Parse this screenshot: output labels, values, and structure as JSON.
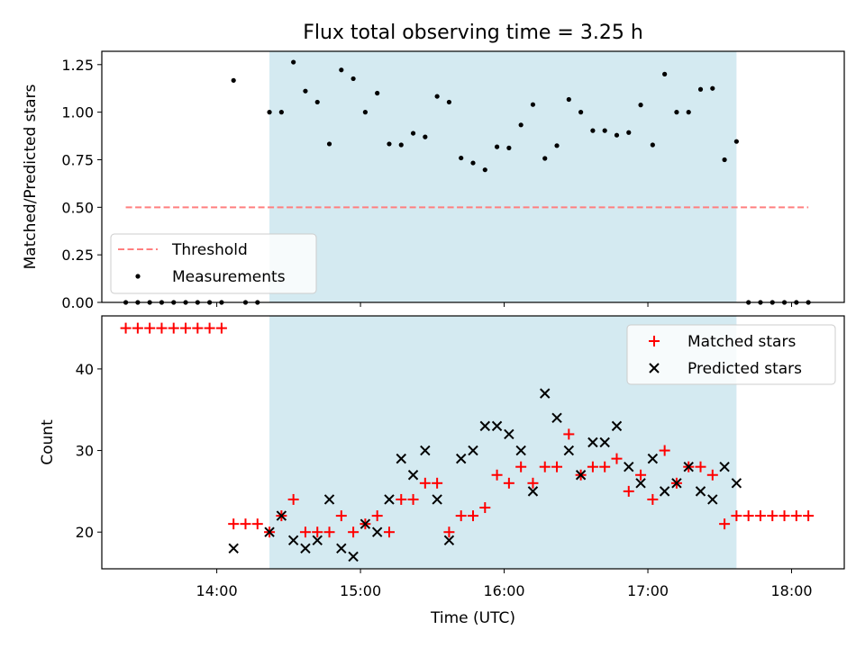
{
  "title": "Flux total observing time = 3.25 h",
  "chart_data": [
    {
      "type": "scatter",
      "ylabel": "Matched/Predicted stars",
      "xlim": [
        "13:12",
        "18:22"
      ],
      "ylim": [
        0,
        1.32
      ],
      "yticks": [
        "0.00",
        "0.25",
        "0.50",
        "0.75",
        "1.00",
        "1.25"
      ],
      "shaded_interval": [
        "14:22",
        "17:37"
      ],
      "threshold": {
        "name": "Threshold",
        "value": 0.5,
        "x_range": [
          "13:22",
          "18:07"
        ],
        "color": "#ff7f7f"
      },
      "series": [
        {
          "name": "Measurements",
          "color": "#000000",
          "x": [
            "13:22",
            "13:27",
            "13:32",
            "13:37",
            "13:42",
            "13:47",
            "13:52",
            "13:57",
            "14:02",
            "14:07",
            "14:12",
            "14:17",
            "14:22",
            "14:27",
            "14:32",
            "14:37",
            "14:42",
            "14:47",
            "14:52",
            "14:57",
            "15:02",
            "15:07",
            "15:12",
            "15:17",
            "15:22",
            "15:27",
            "15:32",
            "15:37",
            "15:42",
            "15:47",
            "15:52",
            "15:57",
            "16:02",
            "16:07",
            "16:12",
            "16:17",
            "16:22",
            "16:27",
            "16:32",
            "16:37",
            "16:42",
            "16:47",
            "16:52",
            "16:57",
            "17:02",
            "17:07",
            "17:12",
            "17:17",
            "17:22",
            "17:27",
            "17:32",
            "17:37",
            "17:42",
            "17:47",
            "17:52",
            "17:57",
            "18:02",
            "18:07"
          ],
          "y": [
            0,
            0,
            0,
            0,
            0,
            0,
            0,
            0,
            0,
            1.167,
            0,
            0,
            1.0,
            1.0,
            1.263,
            1.111,
            1.053,
            0.833,
            1.222,
            1.176,
            1.0,
            1.1,
            0.833,
            0.828,
            0.889,
            0.87,
            1.083,
            1.053,
            0.759,
            0.733,
            0.697,
            0.818,
            0.812,
            0.933,
            1.04,
            0.757,
            0.824,
            1.067,
            1.0,
            0.903,
            0.903,
            0.879,
            0.893,
            1.038,
            0.828,
            1.2,
            1.0,
            1.0,
            1.12,
            1.125,
            0.75,
            0.846,
            0,
            0,
            0,
            0,
            0,
            0
          ]
        }
      ],
      "legend_position": "lower-left"
    },
    {
      "type": "scatter",
      "xlabel": "Time (UTC)",
      "ylabel": "Count",
      "xlim": [
        "13:12",
        "18:22"
      ],
      "ylim": [
        15.5,
        46.5
      ],
      "yticks": [
        "20",
        "30",
        "40"
      ],
      "xticks": [
        "14:00",
        "15:00",
        "16:00",
        "17:00",
        "18:00"
      ],
      "shaded_interval": [
        "14:22",
        "17:37"
      ],
      "series": [
        {
          "name": "Matched stars",
          "marker": "+",
          "color": "#ff0000",
          "x": [
            "13:22",
            "13:27",
            "13:32",
            "13:37",
            "13:42",
            "13:47",
            "13:52",
            "13:57",
            "14:02",
            "14:07",
            "14:12",
            "14:17",
            "14:22",
            "14:27",
            "14:32",
            "14:37",
            "14:42",
            "14:47",
            "14:52",
            "14:57",
            "15:02",
            "15:07",
            "15:12",
            "15:17",
            "15:22",
            "15:27",
            "15:32",
            "15:37",
            "15:42",
            "15:47",
            "15:52",
            "15:57",
            "16:02",
            "16:07",
            "16:12",
            "16:17",
            "16:22",
            "16:27",
            "16:32",
            "16:37",
            "16:42",
            "16:47",
            "16:52",
            "16:57",
            "17:02",
            "17:07",
            "17:12",
            "17:17",
            "17:22",
            "17:27",
            "17:32",
            "17:37",
            "17:42",
            "17:47",
            "17:52",
            "17:57",
            "18:02",
            "18:07"
          ],
          "y": [
            45,
            45,
            45,
            45,
            45,
            45,
            45,
            45,
            45,
            21,
            21,
            21,
            20,
            22,
            24,
            20,
            20,
            20,
            22,
            20,
            21,
            22,
            20,
            24,
            24,
            26,
            26,
            20,
            22,
            22,
            23,
            27,
            26,
            28,
            26,
            28,
            28,
            32,
            27,
            28,
            28,
            29,
            25,
            27,
            24,
            30,
            26,
            28,
            28,
            27,
            21,
            22,
            22,
            22,
            22,
            22,
            22,
            22
          ]
        },
        {
          "name": "Predicted stars",
          "marker": "x",
          "color": "#000000",
          "x": [
            "14:07",
            "14:22",
            "14:27",
            "14:32",
            "14:37",
            "14:42",
            "14:47",
            "14:52",
            "14:57",
            "15:02",
            "15:07",
            "15:12",
            "15:17",
            "15:22",
            "15:27",
            "15:32",
            "15:37",
            "15:42",
            "15:47",
            "15:52",
            "15:57",
            "16:02",
            "16:07",
            "16:12",
            "16:17",
            "16:22",
            "16:27",
            "16:32",
            "16:37",
            "16:42",
            "16:47",
            "16:52",
            "16:57",
            "17:02",
            "17:07",
            "17:12",
            "17:17",
            "17:22",
            "17:27",
            "17:32",
            "17:37"
          ],
          "y": [
            18,
            20,
            22,
            19,
            18,
            19,
            24,
            18,
            17,
            21,
            20,
            24,
            29,
            27,
            30,
            24,
            19,
            29,
            30,
            33,
            33,
            32,
            30,
            25,
            37,
            34,
            30,
            27,
            31,
            31,
            33,
            28,
            26,
            29,
            25,
            26,
            28,
            25,
            24,
            28,
            26
          ]
        }
      ],
      "legend_position": "upper-right"
    }
  ]
}
